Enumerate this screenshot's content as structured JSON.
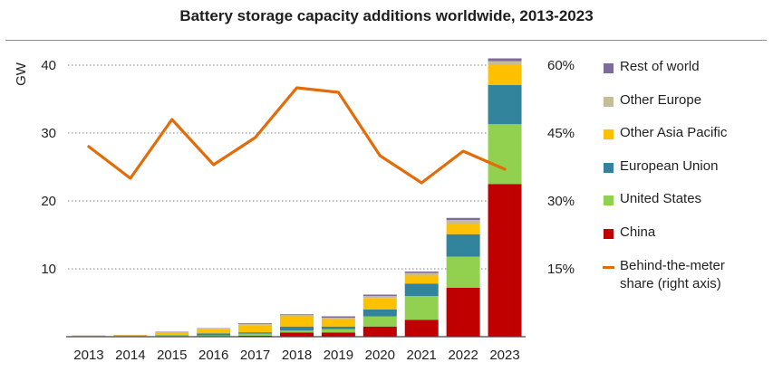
{
  "title": "Battery storage capacity additions worldwide, 2013-2023",
  "chart_data": {
    "type": "bar",
    "stacked": true,
    "title": "Battery storage capacity additions worldwide, 2013-2023",
    "ylabel": "GW",
    "ylim": [
      0,
      40
    ],
    "yticks": [
      "",
      "10",
      "20",
      "30",
      "40"
    ],
    "y2lim": [
      0,
      60
    ],
    "y2ticks": [
      "15%",
      "30%",
      "45%",
      "60%"
    ],
    "grid": true,
    "legend_position": "right",
    "categories": [
      "2013",
      "2014",
      "2015",
      "2016",
      "2017",
      "2018",
      "2019",
      "2020",
      "2021",
      "2022",
      "2023"
    ],
    "series": [
      {
        "name": "China",
        "color": "#c00000",
        "values": [
          0.02,
          0.03,
          0.05,
          0.1,
          0.15,
          0.6,
          0.6,
          1.5,
          2.5,
          7.2,
          22.5
        ]
      },
      {
        "name": "United States",
        "color": "#92d050",
        "values": [
          0.05,
          0.05,
          0.15,
          0.1,
          0.3,
          0.3,
          0.5,
          1.5,
          3.5,
          4.6,
          8.8
        ]
      },
      {
        "name": "European Union",
        "color": "#31849b",
        "values": [
          0.02,
          0.02,
          0.05,
          0.3,
          0.2,
          0.6,
          0.4,
          1.0,
          1.8,
          3.3,
          5.8
        ]
      },
      {
        "name": "Other Asia Pacific",
        "color": "#ffc000",
        "values": [
          0.05,
          0.1,
          0.35,
          0.6,
          1.0,
          1.5,
          1.1,
          1.7,
          1.2,
          1.5,
          2.9
        ]
      },
      {
        "name": "Other Europe",
        "color": "#c4bd97",
        "values": [
          0.03,
          0.05,
          0.1,
          0.1,
          0.25,
          0.2,
          0.2,
          0.3,
          0.4,
          0.6,
          0.6
        ]
      },
      {
        "name": "Rest of world",
        "color": "#7f6a9c",
        "values": [
          0.02,
          0.02,
          0.05,
          0.05,
          0.1,
          0.1,
          0.2,
          0.2,
          0.2,
          0.3,
          0.4
        ]
      }
    ],
    "line_series": {
      "name": "Behind-the-meter share (right axis)",
      "axis": "right",
      "color": "#e36c0a",
      "values": [
        42,
        35,
        48,
        38,
        44,
        55,
        54,
        40,
        34,
        41,
        37
      ]
    }
  },
  "legend": [
    {
      "label": "Rest of world",
      "color": "#7f6a9c",
      "kind": "swatch"
    },
    {
      "label": "Other Europe",
      "color": "#c4bd97",
      "kind": "swatch"
    },
    {
      "label": "Other Asia Pacific",
      "color": "#ffc000",
      "kind": "swatch"
    },
    {
      "label": "European Union",
      "color": "#31849b",
      "kind": "swatch"
    },
    {
      "label": "United States",
      "color": "#92d050",
      "kind": "swatch"
    },
    {
      "label": "China",
      "color": "#c00000",
      "kind": "swatch"
    },
    {
      "label": "Behind-the-meter share (right axis)",
      "color": "#e36c0a",
      "kind": "line"
    }
  ]
}
